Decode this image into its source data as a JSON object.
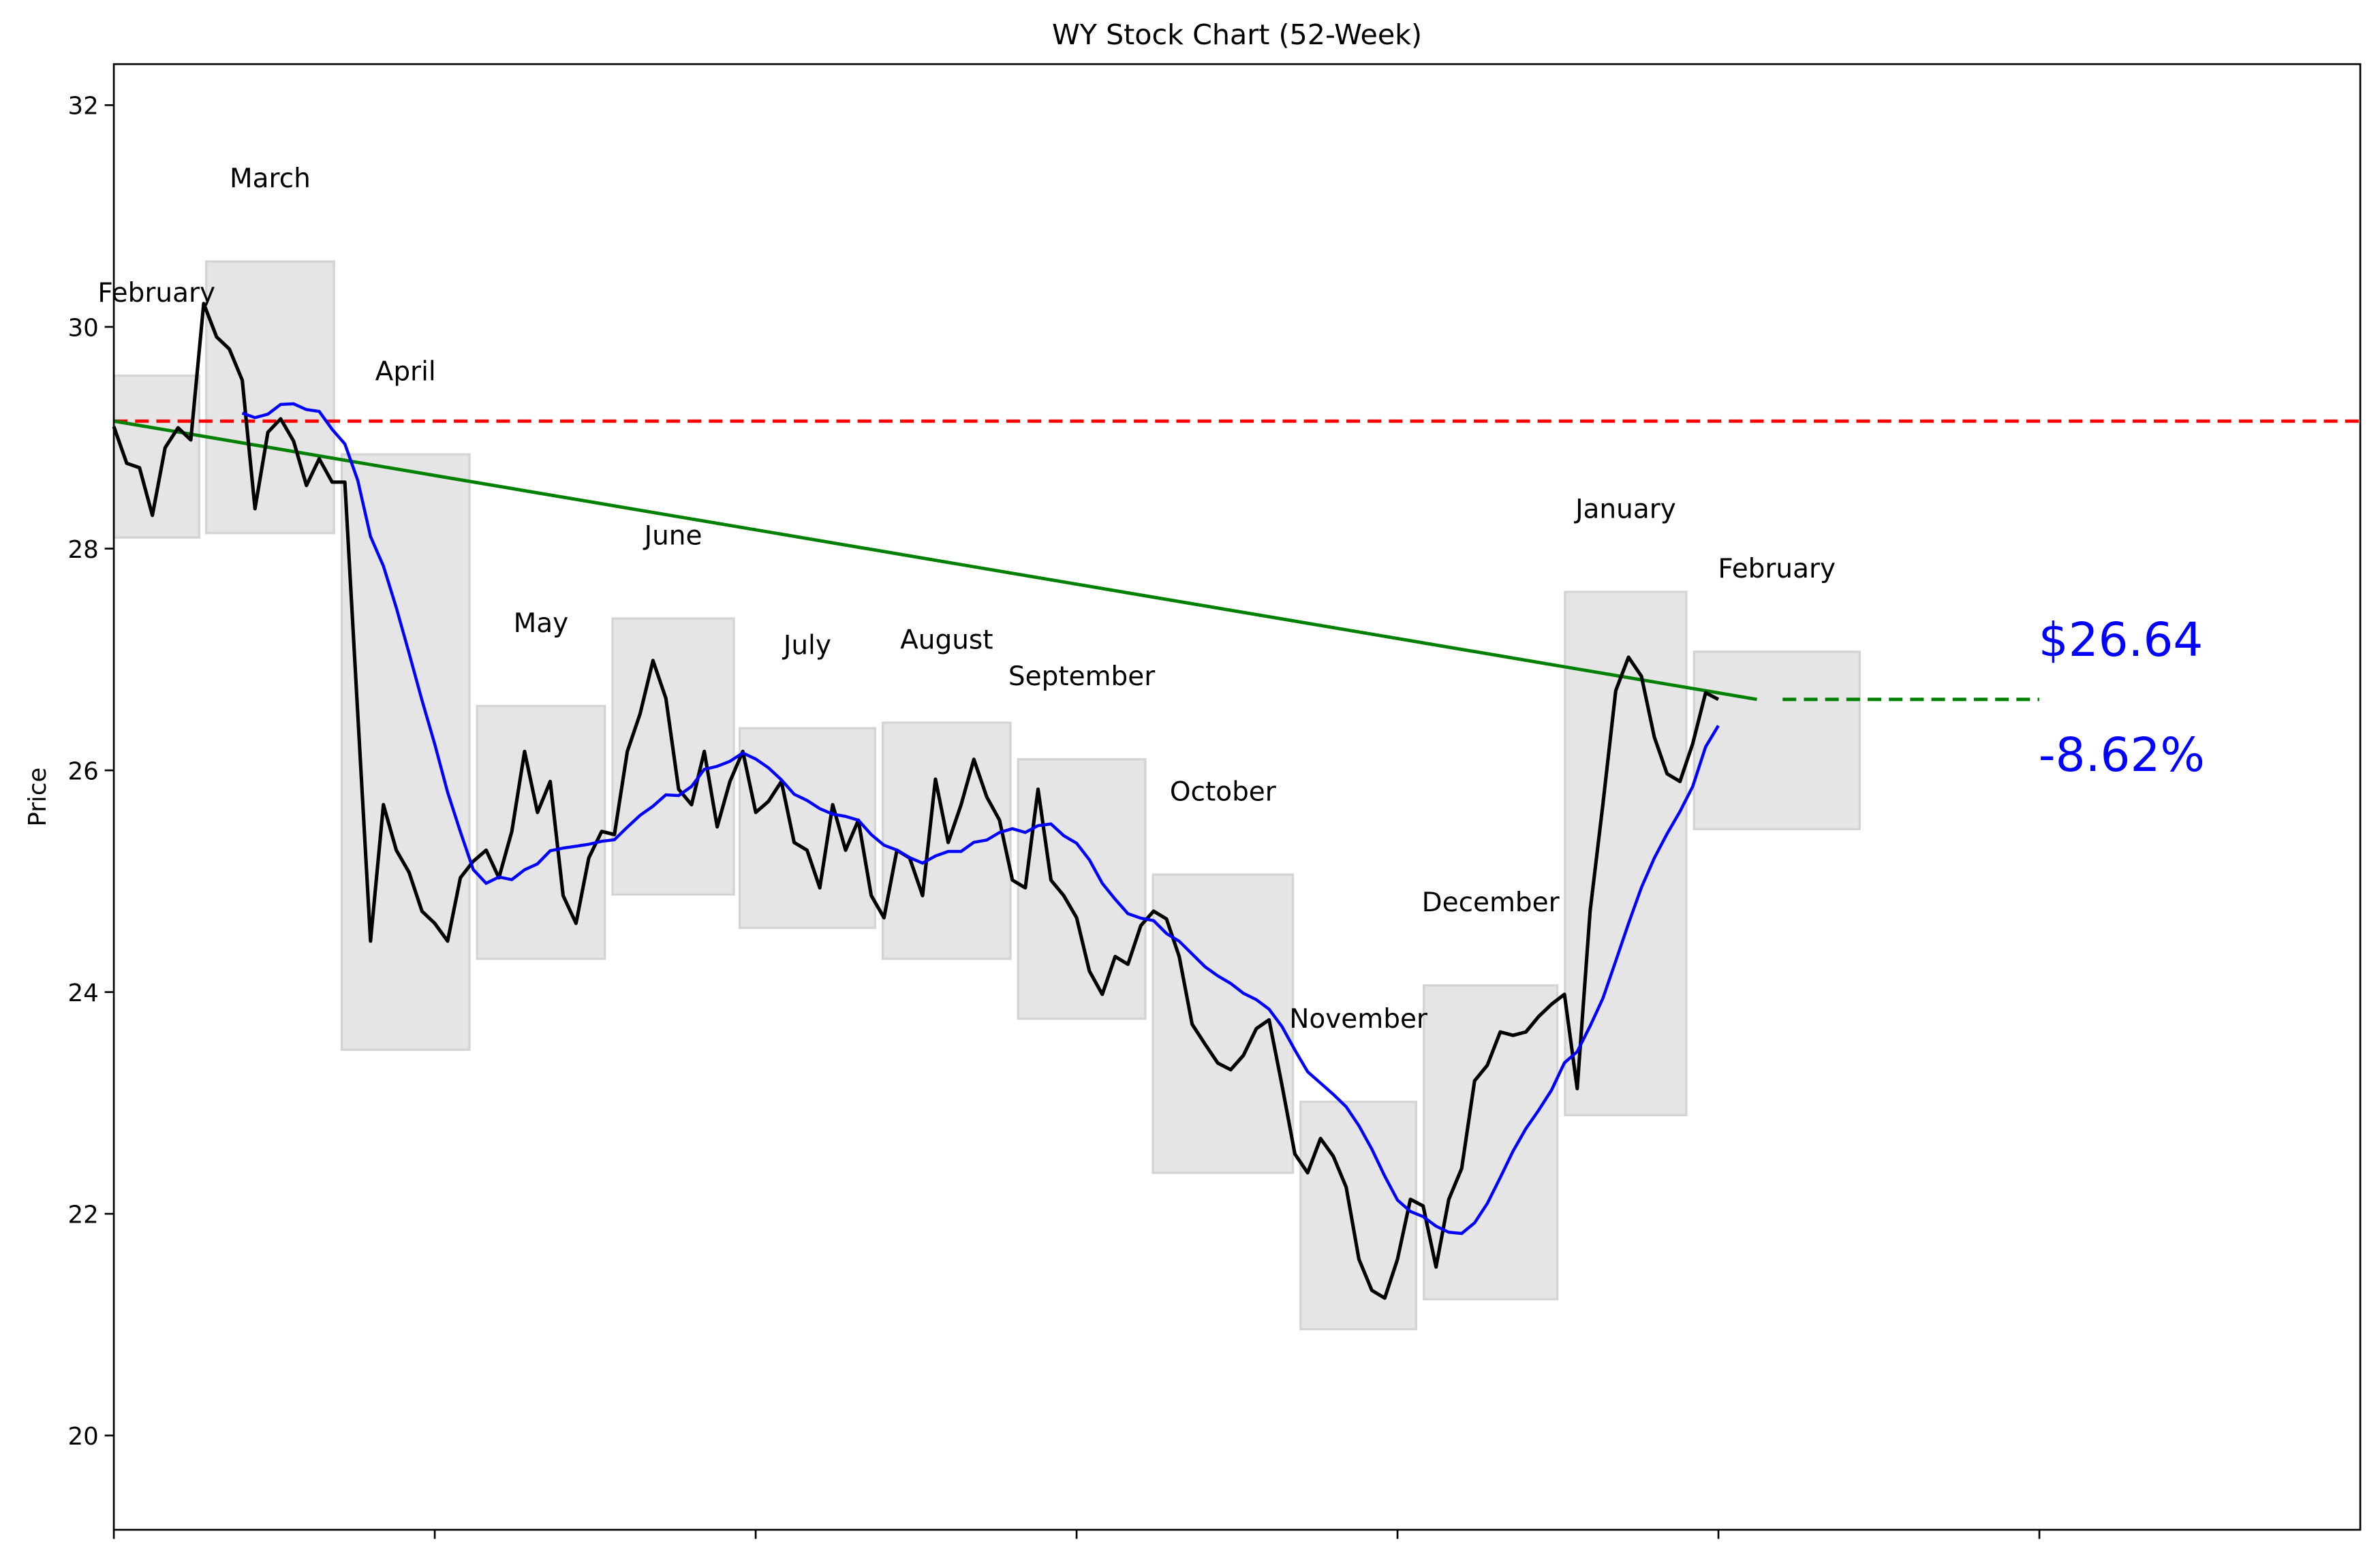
{
  "chart_data": {
    "type": "line",
    "title": "WY Stock Chart (52-Week)",
    "xlabel": "",
    "ylabel": "Price",
    "xlim": [
      0,
      350
    ],
    "ylim": [
      19.15,
      32.37
    ],
    "yticks": [
      20,
      22,
      24,
      26,
      28,
      30,
      32
    ],
    "xticks": [
      0,
      50,
      100,
      150,
      200,
      250,
      300
    ],
    "xtick_labels_shown": false,
    "grid": false,
    "colors": {
      "price": "#000000",
      "moving_average": "#0000ff",
      "trend": "#008000",
      "reference": "#ff0000",
      "month_box": "#e5e5e5",
      "annotation": "#0000ff"
    },
    "price": {
      "x": [
        0,
        2,
        4,
        6,
        8,
        10,
        12,
        14,
        16,
        18,
        20,
        22,
        24,
        26,
        28,
        30,
        32,
        34,
        36,
        38,
        40,
        42,
        44,
        46,
        48,
        50,
        52,
        54,
        56,
        58,
        60,
        62,
        64,
        66,
        68,
        70,
        72,
        74,
        76,
        78,
        80,
        82,
        84,
        86,
        88,
        90,
        92,
        94,
        96,
        98,
        100,
        102,
        104,
        106,
        108,
        110,
        112,
        114,
        116,
        118,
        120,
        122,
        124,
        126,
        128,
        130,
        132,
        134,
        136,
        138,
        140,
        142,
        144,
        146,
        148,
        150,
        152,
        154,
        156,
        158,
        160,
        162,
        164,
        166,
        168,
        170,
        172,
        174,
        176,
        178,
        180,
        182,
        184,
        186,
        188,
        190,
        192,
        194,
        196,
        198,
        200,
        202,
        204,
        206,
        208,
        210,
        212,
        214,
        216,
        218,
        220,
        222,
        224,
        226,
        228,
        230,
        232,
        234,
        236,
        238,
        240,
        242,
        244,
        246,
        248,
        250
      ],
      "y": [
        29.1,
        28.77,
        28.73,
        28.3,
        28.91,
        29.09,
        28.98,
        30.21,
        29.91,
        29.8,
        29.52,
        28.36,
        29.05,
        29.17,
        28.97,
        28.57,
        28.81,
        28.6,
        28.6,
        26.51,
        24.46,
        25.69,
        25.28,
        25.08,
        24.73,
        24.62,
        24.46,
        25.03,
        25.18,
        25.28,
        25.03,
        25.45,
        26.17,
        25.62,
        25.9,
        24.87,
        24.62,
        25.21,
        25.45,
        25.42,
        26.17,
        26.51,
        26.99,
        26.65,
        25.83,
        25.69,
        26.17,
        25.49,
        25.9,
        26.17,
        25.62,
        25.72,
        25.9,
        25.35,
        25.28,
        24.94,
        25.69,
        25.28,
        25.55,
        24.87,
        24.67,
        25.28,
        25.21,
        24.87,
        25.92,
        25.35,
        25.69,
        26.1,
        25.76,
        25.55,
        25.01,
        24.94,
        25.83,
        25.01,
        24.87,
        24.67,
        24.19,
        23.98,
        24.32,
        24.25,
        24.6,
        24.73,
        24.66,
        24.32,
        23.71,
        23.53,
        23.36,
        23.3,
        23.43,
        23.67,
        23.75,
        23.16,
        22.54,
        22.37,
        22.68,
        22.52,
        22.24,
        21.59,
        21.31,
        21.24,
        21.59,
        22.13,
        22.07,
        21.52,
        22.13,
        22.41,
        23.2,
        23.34,
        23.64,
        23.61,
        23.64,
        23.78,
        23.89,
        23.98,
        23.13,
        24.73,
        25.69,
        26.72,
        27.02,
        26.85,
        26.3,
        25.97,
        25.9,
        26.24,
        26.7,
        26.64
      ]
    },
    "moving_average_window_days": 20,
    "reference_line": {
      "y": 29.15,
      "style": "dashed"
    },
    "trend_line": {
      "x": [
        0,
        256
      ],
      "y": [
        29.15,
        26.64
      ]
    },
    "projection_line": {
      "x": [
        260,
        300
      ],
      "y": 26.64,
      "style": "dashed"
    },
    "months": [
      {
        "label": "February",
        "x": [
          0,
          13.3
        ],
        "y": [
          28.1,
          29.56
        ]
      },
      {
        "label": "March",
        "x": [
          14.4,
          34.3
        ],
        "y": [
          28.14,
          30.59
        ]
      },
      {
        "label": "April",
        "x": [
          35.5,
          55.4
        ],
        "y": [
          23.48,
          28.85
        ]
      },
      {
        "label": "May",
        "x": [
          56.6,
          76.5
        ],
        "y": [
          24.3,
          26.58
        ]
      },
      {
        "label": "June",
        "x": [
          77.7,
          96.6
        ],
        "y": [
          24.88,
          27.37
        ]
      },
      {
        "label": "July",
        "x": [
          97.5,
          118.6
        ],
        "y": [
          24.58,
          26.38
        ]
      },
      {
        "label": "August",
        "x": [
          119.8,
          139.7
        ],
        "y": [
          24.3,
          26.43
        ]
      },
      {
        "label": "September",
        "x": [
          140.9,
          160.7
        ],
        "y": [
          23.76,
          26.1
        ]
      },
      {
        "label": "October",
        "x": [
          161.9,
          183.7
        ],
        "y": [
          22.37,
          25.06
        ]
      },
      {
        "label": "November",
        "x": [
          184.9,
          202.9
        ],
        "y": [
          20.96,
          23.01
        ]
      },
      {
        "label": "December",
        "x": [
          204.1,
          224.9
        ],
        "y": [
          21.23,
          24.06
        ]
      },
      {
        "label": "January",
        "x": [
          226.1,
          245.0
        ],
        "y": [
          22.89,
          27.61
        ]
      },
      {
        "label": "February",
        "x": [
          246.2,
          272.0
        ],
        "y": [
          25.47,
          27.07
        ]
      }
    ],
    "annotations": {
      "last_price": "$26.64",
      "change": "-8.62%"
    }
  }
}
